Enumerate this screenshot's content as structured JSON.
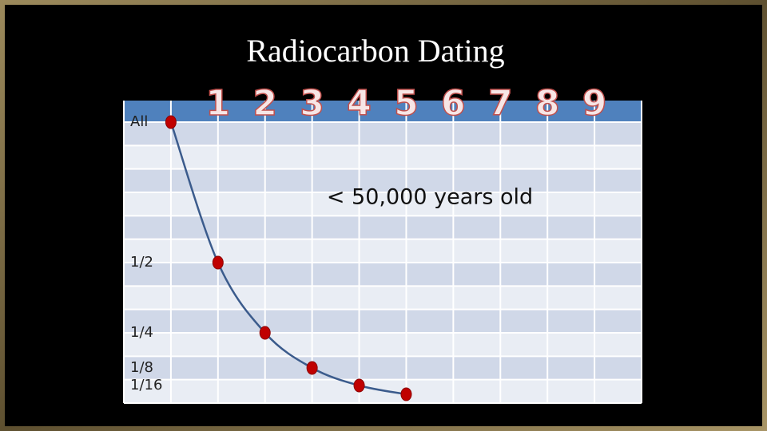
{
  "chart_data": {
    "type": "line",
    "title": "Radiocarbon Dating",
    "annotation": "< 50,000 years old",
    "x": [
      0,
      1,
      2,
      3,
      4,
      5
    ],
    "series": [
      {
        "color": "#3b5b8c",
        "values": [
          1,
          0.5,
          0.25,
          0.125,
          0.0625,
          0.03125
        ]
      }
    ],
    "marker_color": "#c00000",
    "xlim": [
      -1,
      10
    ],
    "xticks": [
      1,
      2,
      3,
      4,
      5,
      6,
      7,
      8,
      9
    ],
    "ylim": [
      0,
      1
    ],
    "yticks": [
      {
        "value": 1,
        "label": "All"
      },
      {
        "value": 0.5,
        "label": "1/2"
      },
      {
        "value": 0.25,
        "label": "1/4"
      },
      {
        "value": 0.125,
        "label": "1/8"
      },
      {
        "value": 0.0625,
        "label": "1/16"
      }
    ]
  }
}
